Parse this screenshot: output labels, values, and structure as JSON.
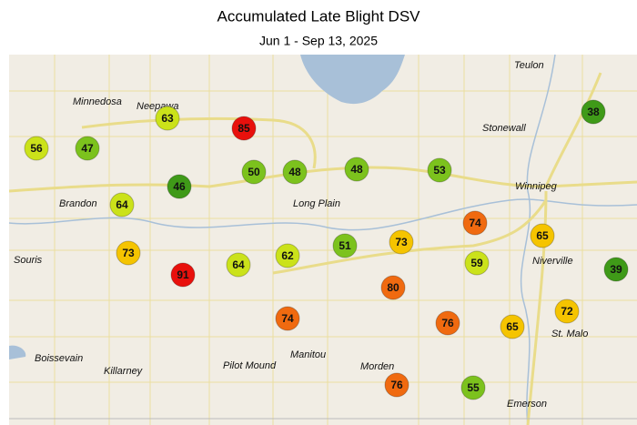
{
  "header": {
    "title": "Accumulated Late Blight DSV",
    "subtitle": "Jun 1 - Sep 13, 2025"
  },
  "towns": [
    "Teulon",
    "Minnedosa",
    "Neepawa",
    "Stonewall",
    "Winnipeg",
    "Brandon",
    "Long Plain",
    "Souris",
    "Niverville",
    "St. Malo",
    "Boissevain",
    "Manitou",
    "Pilot Mound",
    "Morden",
    "Killarney",
    "Emerson"
  ],
  "stations": [
    {
      "value": 56,
      "color": "#cbe21a"
    },
    {
      "value": 47,
      "color": "#7cc21d"
    },
    {
      "value": 63,
      "color": "#cbe21a"
    },
    {
      "value": 85,
      "color": "#e8100c"
    },
    {
      "value": 50,
      "color": "#7cc21d"
    },
    {
      "value": 48,
      "color": "#7cc21d"
    },
    {
      "value": 48,
      "color": "#7cc21d"
    },
    {
      "value": 53,
      "color": "#7cc21d"
    },
    {
      "value": 38,
      "color": "#3f9a18"
    },
    {
      "value": 46,
      "color": "#3f9a18"
    },
    {
      "value": 64,
      "color": "#cbe21a"
    },
    {
      "value": 74,
      "color": "#f06a10"
    },
    {
      "value": 65,
      "color": "#f5c400"
    },
    {
      "value": 73,
      "color": "#f5c400"
    },
    {
      "value": 91,
      "color": "#e8100c"
    },
    {
      "value": 64,
      "color": "#cbe21a"
    },
    {
      "value": 62,
      "color": "#cbe21a"
    },
    {
      "value": 51,
      "color": "#7cc21d"
    },
    {
      "value": 73,
      "color": "#f5c400"
    },
    {
      "value": 59,
      "color": "#cbe21a"
    },
    {
      "value": 39,
      "color": "#3f9a18"
    },
    {
      "value": 80,
      "color": "#f06a10"
    },
    {
      "value": 72,
      "color": "#f5c400"
    },
    {
      "value": 74,
      "color": "#f06a10"
    },
    {
      "value": 76,
      "color": "#f06a10"
    },
    {
      "value": 65,
      "color": "#f5c400"
    },
    {
      "value": 76,
      "color": "#f06a10"
    },
    {
      "value": 55,
      "color": "#7cc21d"
    }
  ]
}
